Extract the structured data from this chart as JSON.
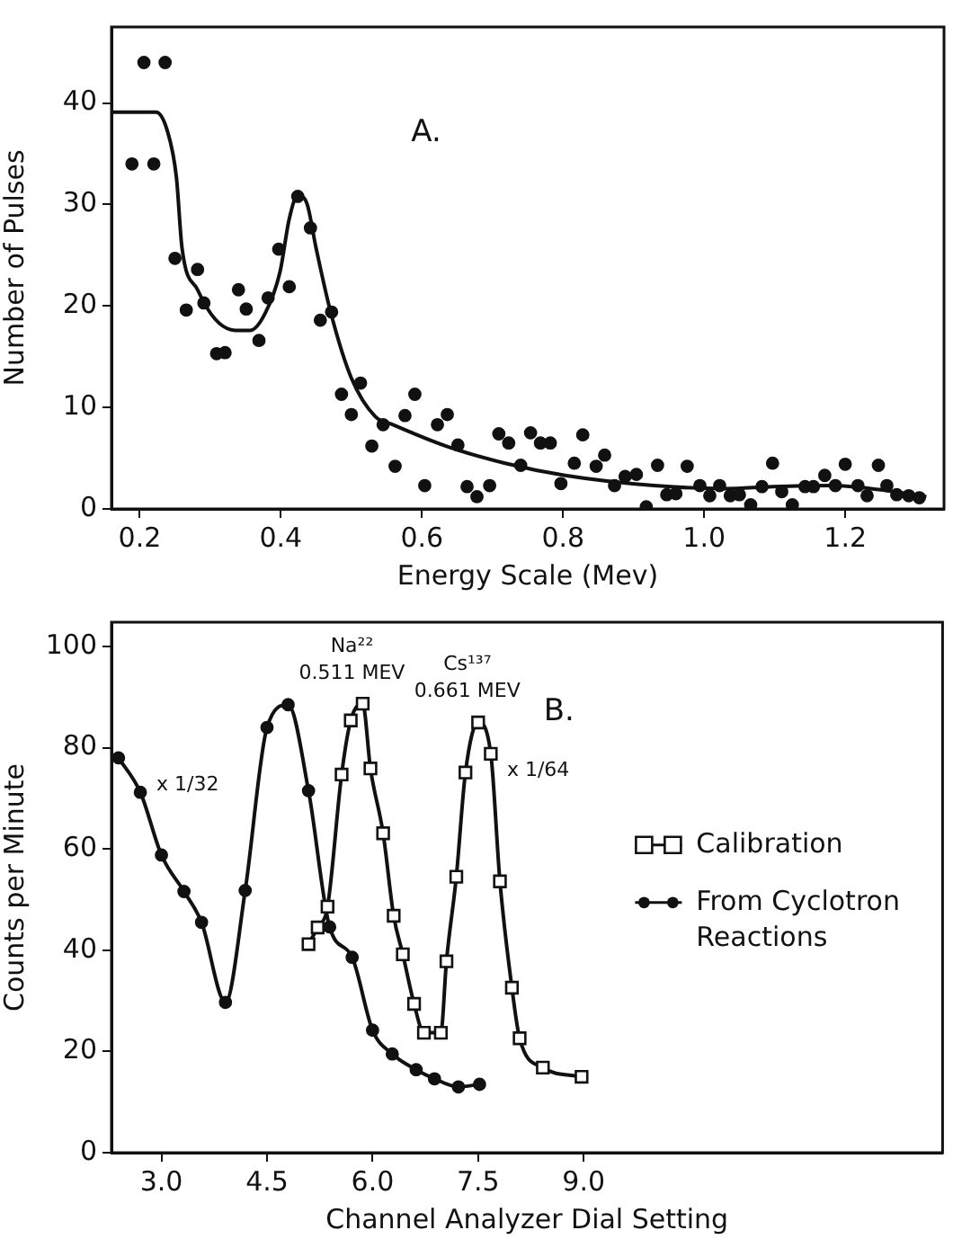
{
  "chart_data": [
    {
      "type": "scatter",
      "xlabel": "Energy Scale (Mev)",
      "ylabel": "Number of Pulses",
      "xlim": [
        0.16,
        1.34
      ],
      "ylim": [
        0,
        47.5
      ],
      "xticks": [
        0.2,
        0.4,
        0.6,
        0.8,
        {
          "value": 1,
          "label": "1.0"
        },
        1.2
      ],
      "yticks": [
        0,
        10,
        20,
        30,
        40
      ],
      "grid": false,
      "legend": false,
      "annotations": [
        "A."
      ],
      "series": [
        {
          "color": "#111111",
          "marker": "circle",
          "x": [
            0.189,
            0.206,
            0.22,
            0.236,
            0.25,
            0.266,
            0.282,
            0.291,
            0.309,
            0.321,
            0.34,
            0.351,
            0.369,
            0.382,
            0.397,
            0.412,
            0.424,
            0.442,
            0.456,
            0.472,
            0.486,
            0.5,
            0.513,
            0.529,
            0.545,
            0.562,
            0.576,
            0.59,
            0.604,
            0.622,
            0.636,
            0.651,
            0.664,
            0.678,
            0.696,
            0.709,
            0.723,
            0.74,
            0.754,
            0.768,
            0.782,
            0.797,
            0.816,
            0.828,
            0.847,
            0.859,
            0.873,
            0.888,
            0.904,
            0.918,
            0.934,
            0.947,
            0.96,
            0.976,
            0.994,
            1.008,
            1.022,
            1.037,
            1.05,
            1.066,
            1.082,
            1.097,
            1.11,
            1.125,
            1.143,
            1.155,
            1.171,
            1.186,
            1.2,
            1.218,
            1.231,
            1.247,
            1.259,
            1.273,
            1.29,
            1.305
          ],
          "values": [
            34,
            44,
            34,
            44,
            24.7,
            19.6,
            23.6,
            20.3,
            15.3,
            15.4,
            21.6,
            19.7,
            16.6,
            20.8,
            25.6,
            21.9,
            30.8,
            27.7,
            18.6,
            19.4,
            11.3,
            9.3,
            12.4,
            6.2,
            8.3,
            4.2,
            9.2,
            11.3,
            2.3,
            8.3,
            9.3,
            6.3,
            2.2,
            1.2,
            2.3,
            7.4,
            6.5,
            4.3,
            7.5,
            6.5,
            6.5,
            2.5,
            4.5,
            7.3,
            4.2,
            5.3,
            2.3,
            3.2,
            3.4,
            0.2,
            4.3,
            1.4,
            1.5,
            4.2,
            2.3,
            1.3,
            2.3,
            1.3,
            1.4,
            0.4,
            2.2,
            4.5,
            1.7,
            0.4,
            2.2,
            2.2,
            3.3,
            2.3,
            4.4,
            2.3,
            1.3,
            4.3,
            2.3,
            1.4,
            1.3,
            1.1
          ]
        },
        {
          "type": "line",
          "color": "#111111",
          "marker": "none",
          "line_style": "solid",
          "x": [
            0.16,
            0.223,
            0.239,
            0.252,
            0.26,
            0.282,
            0.307,
            0.336,
            0.357,
            0.378,
            0.399,
            0.412,
            0.424,
            0.437,
            0.45,
            0.471,
            0.5,
            0.534,
            0.559,
            0.634,
            0.718,
            0.803,
            0.929,
            1.029,
            1.097,
            1.181,
            1.248,
            1.315
          ],
          "values": [
            39.1,
            39.1,
            37.3,
            32.7,
            25.7,
            21.6,
            18.7,
            17.6,
            17.6,
            19.3,
            23.4,
            28.6,
            30.9,
            30.1,
            25.7,
            19.3,
            12.9,
            9.1,
            8.3,
            6.2,
            4.5,
            3.3,
            2.3,
            2.0,
            2.2,
            2.3,
            1.9,
            1.2
          ]
        }
      ]
    },
    {
      "type": "line",
      "xlabel": "Channel Analyzer Dial Setting",
      "ylabel": "Counts per Minute",
      "xlim": [
        2.29,
        14.1
      ],
      "ylim": [
        0,
        104.8
      ],
      "xticks": [
        {
          "value": 3,
          "label": "3.0"
        },
        4.5,
        {
          "value": 6,
          "label": "6.0"
        },
        7.5,
        {
          "value": 9,
          "label": "9.0"
        }
      ],
      "yticks": [
        0,
        20,
        40,
        60,
        80,
        100
      ],
      "grid": false,
      "legend": "right",
      "annotations": [
        "B.",
        {
          "text": "Na²²\n0.511 MEV",
          "x": 5.86,
          "y": 88.7
        },
        {
          "text": "Cs¹³⁷\n0.661 MEV",
          "x": 7.5,
          "y": 85
        },
        {
          "text": "x 1/32",
          "x": 2.7,
          "y": 71.2
        },
        {
          "text": "x 1/64",
          "x": 7.68,
          "y": 74
        }
      ],
      "series": [
        {
          "name": "Calibration",
          "color": "#111111",
          "marker": "square",
          "line_style": "solid",
          "x": [
            5.09,
            5.22,
            5.36,
            5.56,
            5.69,
            5.86,
            5.97,
            6.15,
            6.3,
            6.43,
            6.59,
            6.73,
            6.97,
            7.05,
            7.19,
            7.32,
            7.5,
            7.68,
            7.81,
            7.98,
            8.09,
            8.42,
            8.97
          ],
          "values": [
            41.2,
            44.5,
            48.6,
            74.7,
            85.4,
            88.7,
            75.9,
            63.1,
            46.8,
            39.2,
            29.4,
            23.7,
            23.7,
            37.8,
            54.5,
            75.1,
            85,
            78.8,
            53.6,
            32.6,
            22.6,
            16.8,
            15
          ]
        },
        {
          "name": "From Cyclotron Reactions",
          "color": "#111111",
          "marker": "circle",
          "line_style": "solid",
          "x": [
            2.39,
            2.7,
            3,
            3.32,
            3.57,
            3.91,
            4.19,
            4.5,
            4.8,
            5.09,
            5.39,
            5.71,
            6,
            6.28,
            6.62,
            6.88,
            7.22,
            7.52
          ],
          "values": [
            78,
            71.2,
            58.8,
            51.6,
            45.5,
            29.7,
            51.8,
            84,
            88.5,
            71.5,
            44.6,
            38.6,
            24.2,
            19.5,
            16.4,
            14.6,
            13,
            13.5
          ]
        }
      ]
    }
  ]
}
